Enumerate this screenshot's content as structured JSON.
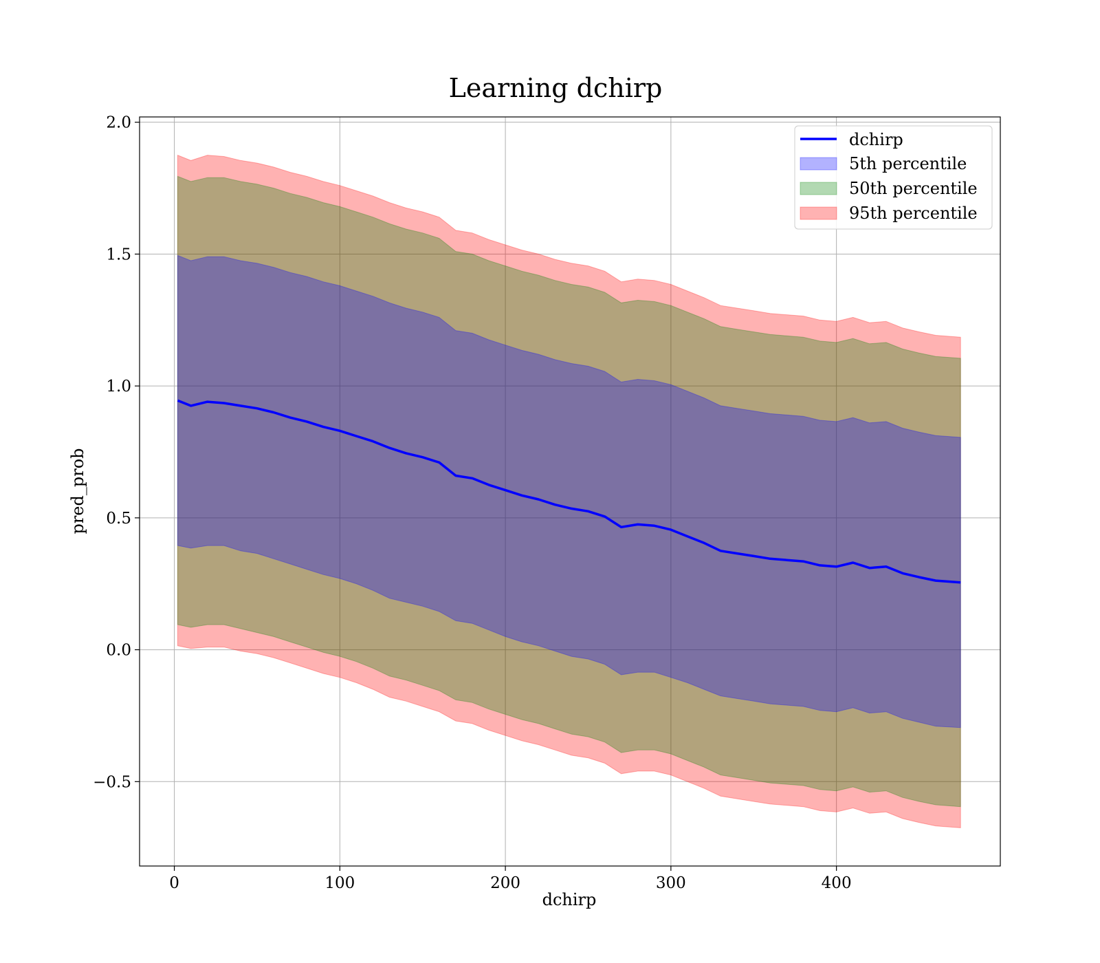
{
  "chart_data": {
    "type": "area",
    "title": "Learning dchirp",
    "xlabel": "dchirp",
    "ylabel": "pred_prob",
    "xlim": [
      -21,
      499
    ],
    "ylim": [
      -0.82,
      2.02
    ],
    "xticks": [
      0,
      100,
      200,
      300,
      400
    ],
    "yticks": [
      -0.5,
      0.0,
      0.5,
      1.0,
      1.5,
      2.0
    ],
    "xtick_labels": [
      "0",
      "100",
      "200",
      "300",
      "400"
    ],
    "ytick_labels": [
      "−0.5",
      "0.0",
      "0.5",
      "1.0",
      "1.5",
      "2.0"
    ],
    "grid": true,
    "legend_position": "top-right",
    "x": [
      2,
      10,
      20,
      30,
      40,
      50,
      60,
      70,
      80,
      90,
      100,
      110,
      120,
      130,
      140,
      150,
      160,
      170,
      180,
      190,
      200,
      210,
      220,
      230,
      240,
      250,
      260,
      270,
      280,
      290,
      300,
      310,
      320,
      330,
      340,
      350,
      360,
      370,
      380,
      390,
      400,
      410,
      420,
      430,
      440,
      450,
      460,
      475
    ],
    "line": {
      "name": "dchirp",
      "color": "#0000ff",
      "values": [
        0.945,
        0.925,
        0.94,
        0.935,
        0.925,
        0.915,
        0.9,
        0.88,
        0.865,
        0.845,
        0.83,
        0.81,
        0.79,
        0.765,
        0.745,
        0.73,
        0.71,
        0.66,
        0.65,
        0.625,
        0.605,
        0.585,
        0.57,
        0.55,
        0.535,
        0.525,
        0.505,
        0.465,
        0.475,
        0.47,
        0.455,
        0.43,
        0.405,
        0.375,
        0.365,
        0.355,
        0.345,
        0.34,
        0.335,
        0.32,
        0.315,
        0.33,
        0.31,
        0.315,
        0.29,
        0.275,
        0.262,
        0.255
      ]
    },
    "bands": [
      {
        "name": "5th percentile",
        "color": "#0000ff",
        "lower": [
          0.395,
          0.385,
          0.395,
          0.395,
          0.375,
          0.365,
          0.345,
          0.325,
          0.305,
          0.285,
          0.27,
          0.25,
          0.225,
          0.195,
          0.18,
          0.165,
          0.145,
          0.11,
          0.1,
          0.075,
          0.05,
          0.03,
          0.015,
          -0.005,
          -0.025,
          -0.035,
          -0.055,
          -0.095,
          -0.085,
          -0.085,
          -0.105,
          -0.125,
          -0.15,
          -0.175,
          -0.185,
          -0.195,
          -0.205,
          -0.21,
          -0.215,
          -0.23,
          -0.235,
          -0.22,
          -0.24,
          -0.235,
          -0.26,
          -0.275,
          -0.29,
          -0.295
        ],
        "upper": [
          1.495,
          1.475,
          1.49,
          1.49,
          1.475,
          1.465,
          1.45,
          1.43,
          1.415,
          1.395,
          1.38,
          1.36,
          1.34,
          1.315,
          1.295,
          1.28,
          1.26,
          1.21,
          1.2,
          1.175,
          1.155,
          1.135,
          1.12,
          1.1,
          1.085,
          1.075,
          1.055,
          1.015,
          1.025,
          1.02,
          1.005,
          0.98,
          0.955,
          0.925,
          0.915,
          0.905,
          0.895,
          0.89,
          0.885,
          0.87,
          0.865,
          0.88,
          0.86,
          0.865,
          0.84,
          0.825,
          0.812,
          0.805
        ]
      },
      {
        "name": "50th percentile",
        "color": "#008000",
        "lower": [
          0.095,
          0.085,
          0.095,
          0.095,
          0.08,
          0.065,
          0.05,
          0.03,
          0.01,
          -0.01,
          -0.025,
          -0.045,
          -0.07,
          -0.1,
          -0.115,
          -0.135,
          -0.155,
          -0.19,
          -0.2,
          -0.225,
          -0.245,
          -0.265,
          -0.28,
          -0.3,
          -0.32,
          -0.33,
          -0.35,
          -0.39,
          -0.38,
          -0.38,
          -0.395,
          -0.42,
          -0.445,
          -0.475,
          -0.485,
          -0.495,
          -0.505,
          -0.51,
          -0.515,
          -0.53,
          -0.535,
          -0.52,
          -0.54,
          -0.535,
          -0.56,
          -0.575,
          -0.588,
          -0.595
        ],
        "upper": [
          1.795,
          1.775,
          1.79,
          1.79,
          1.775,
          1.765,
          1.75,
          1.73,
          1.715,
          1.695,
          1.68,
          1.66,
          1.64,
          1.615,
          1.595,
          1.58,
          1.56,
          1.51,
          1.5,
          1.475,
          1.455,
          1.435,
          1.42,
          1.4,
          1.385,
          1.375,
          1.355,
          1.315,
          1.325,
          1.32,
          1.305,
          1.28,
          1.255,
          1.225,
          1.215,
          1.205,
          1.195,
          1.19,
          1.185,
          1.17,
          1.165,
          1.18,
          1.16,
          1.165,
          1.14,
          1.125,
          1.112,
          1.105
        ]
      },
      {
        "name": "95th percentile",
        "color": "#ff0000",
        "lower": [
          0.015,
          0.005,
          0.01,
          0.01,
          -0.005,
          -0.015,
          -0.03,
          -0.05,
          -0.07,
          -0.09,
          -0.105,
          -0.125,
          -0.15,
          -0.18,
          -0.195,
          -0.215,
          -0.235,
          -0.27,
          -0.28,
          -0.305,
          -0.325,
          -0.345,
          -0.36,
          -0.38,
          -0.4,
          -0.41,
          -0.43,
          -0.47,
          -0.46,
          -0.46,
          -0.475,
          -0.5,
          -0.525,
          -0.555,
          -0.565,
          -0.575,
          -0.585,
          -0.59,
          -0.595,
          -0.61,
          -0.615,
          -0.6,
          -0.62,
          -0.615,
          -0.64,
          -0.655,
          -0.668,
          -0.675
        ],
        "upper": [
          1.875,
          1.855,
          1.875,
          1.87,
          1.855,
          1.845,
          1.83,
          1.81,
          1.795,
          1.775,
          1.76,
          1.74,
          1.72,
          1.695,
          1.675,
          1.66,
          1.64,
          1.59,
          1.58,
          1.555,
          1.535,
          1.515,
          1.5,
          1.48,
          1.465,
          1.455,
          1.435,
          1.395,
          1.405,
          1.4,
          1.385,
          1.36,
          1.335,
          1.305,
          1.295,
          1.285,
          1.275,
          1.27,
          1.265,
          1.25,
          1.245,
          1.26,
          1.24,
          1.245,
          1.22,
          1.205,
          1.192,
          1.185
        ]
      }
    ]
  }
}
